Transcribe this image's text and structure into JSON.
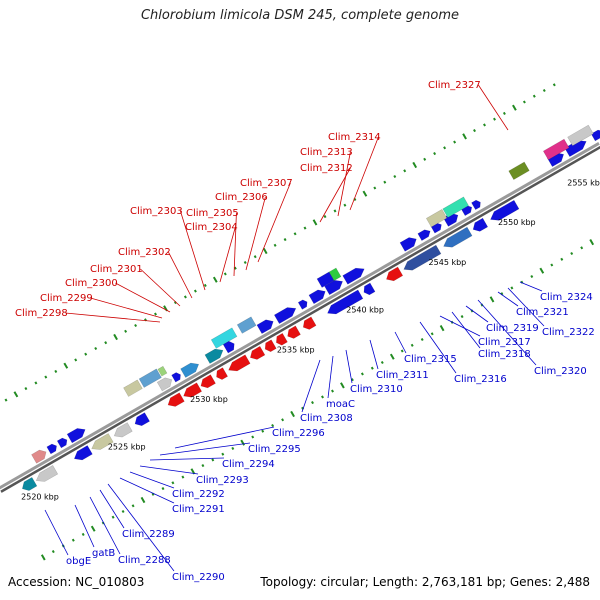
{
  "title": "Chlorobium limicola DSM 245, complete genome",
  "footer": {
    "accession": "Accession: NC_010803",
    "summary": "Topology: circular; Length: 2,763,181 bp; Genes: 2,488"
  },
  "colors": {
    "backbone": "#8a8a8a",
    "tick_dot": "#228b22",
    "forward_label": "#cc0000",
    "reverse_label": "#0000cc"
  },
  "scale_labels": [
    "2520 kbp",
    "2525 kbp",
    "2530 kbp",
    "2535 kbp",
    "2540 kbp",
    "2545 kbp",
    "2550 kbp",
    "2555 kbp"
  ],
  "forward_genes": [
    "Clim_2298",
    "Clim_2299",
    "Clim_2300",
    "Clim_2301",
    "Clim_2302",
    "Clim_2303",
    "Clim_2304",
    "Clim_2305",
    "Clim_2306",
    "Clim_2307",
    "Clim_2312",
    "Clim_2313",
    "Clim_2314",
    "Clim_2327"
  ],
  "reverse_genes": [
    "obgE",
    "gatB",
    "Clim_2288",
    "Clim_2289",
    "Clim_2290",
    "Clim_2291",
    "Clim_2292",
    "Clim_2293",
    "Clim_2294",
    "Clim_2295",
    "Clim_2296",
    "Clim_2308",
    "moaC",
    "Clim_2310",
    "Clim_2311",
    "Clim_2315",
    "Clim_2316",
    "Clim_2317",
    "Clim_2318",
    "Clim_2319",
    "Clim_2320",
    "Clim_2321",
    "Clim_2322",
    "Clim_2324"
  ]
}
